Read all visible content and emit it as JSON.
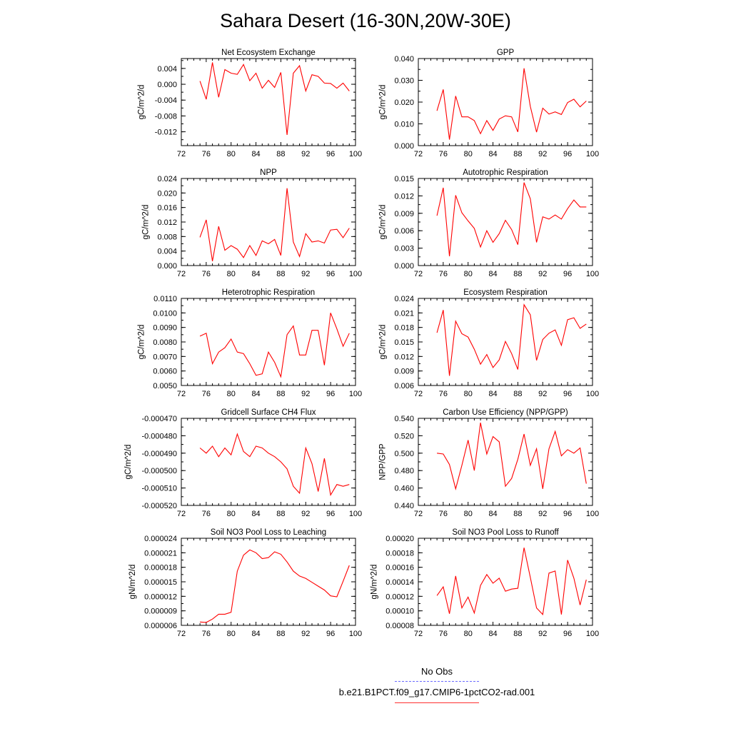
{
  "figure": {
    "title": "Sahara Desert (16-30N,20W-30E)",
    "line_color": "#ff0000",
    "obs_line_color": "#6a6aff"
  },
  "legend": {
    "obs_label": "No Obs",
    "model_label": "b.e21.B1PCT.f09_g17.CMIP6-1pctCO2-rad.001"
  },
  "chart_data": [
    {
      "type": "line",
      "title": "Net Ecosystem Exchange",
      "ylabel": "gC/m^2/d",
      "xlabel": "",
      "xlim": [
        72,
        100
      ],
      "x_ticks": [
        "72",
        "76",
        "80",
        "84",
        "88",
        "92",
        "96",
        "100"
      ],
      "ylim": [
        -0.0155,
        0.0065
      ],
      "y_ticks": [
        "0.004",
        "0.000",
        "-0.004",
        "-0.008",
        "-0.012"
      ],
      "y_tick_values": [
        0.004,
        0.0,
        -0.004,
        -0.008,
        -0.012
      ],
      "x": [
        75,
        76,
        77,
        78,
        79,
        80,
        81,
        82,
        83,
        84,
        85,
        86,
        87,
        88,
        89,
        90,
        91,
        92,
        93,
        94,
        95,
        96,
        97,
        98,
        99
      ],
      "series": [
        {
          "values": [
            0.0008,
            -0.0038,
            0.0055,
            -0.0033,
            0.0037,
            0.0028,
            0.0025,
            0.005,
            0.0009,
            0.0028,
            -0.001,
            0.001,
            -0.0008,
            0.003,
            -0.0128,
            0.0028,
            0.0047,
            -0.0017,
            0.0024,
            0.002,
            0.0003,
            0.0002,
            -0.001,
            0.0003,
            -0.0017
          ]
        }
      ]
    },
    {
      "type": "line",
      "title": "GPP",
      "ylabel": "gC/m^2/d",
      "xlabel": "",
      "xlim": [
        72,
        100
      ],
      "x_ticks": [
        "72",
        "76",
        "80",
        "84",
        "88",
        "92",
        "96",
        "100"
      ],
      "ylim": [
        0.0,
        0.04
      ],
      "y_ticks": [
        "0.040",
        "0.030",
        "0.020",
        "0.010",
        "0.000"
      ],
      "y_tick_values": [
        0.04,
        0.03,
        0.02,
        0.01,
        0.0
      ],
      "x": [
        75,
        76,
        77,
        78,
        79,
        80,
        81,
        82,
        83,
        84,
        85,
        86,
        87,
        88,
        89,
        90,
        91,
        92,
        93,
        94,
        95,
        96,
        97,
        98,
        99
      ],
      "series": [
        {
          "values": [
            0.016,
            0.0258,
            0.0028,
            0.0228,
            0.0132,
            0.0132,
            0.0115,
            0.0055,
            0.0115,
            0.007,
            0.0122,
            0.0137,
            0.0132,
            0.0063,
            0.0355,
            0.018,
            0.0062,
            0.0172,
            0.0145,
            0.0155,
            0.0143,
            0.0198,
            0.0213,
            0.0178,
            0.0205
          ]
        }
      ]
    },
    {
      "type": "line",
      "title": "NPP",
      "ylabel": "gC/m^2/d",
      "xlabel": "",
      "xlim": [
        72,
        100
      ],
      "x_ticks": [
        "72",
        "76",
        "80",
        "84",
        "88",
        "92",
        "96",
        "100"
      ],
      "ylim": [
        0.0,
        0.024
      ],
      "y_ticks": [
        "0.024",
        "0.020",
        "0.016",
        "0.012",
        "0.008",
        "0.004",
        "0.000"
      ],
      "y_tick_values": [
        0.024,
        0.02,
        0.016,
        0.012,
        0.008,
        0.004,
        0.0
      ],
      "x": [
        75,
        76,
        77,
        78,
        79,
        80,
        81,
        82,
        83,
        84,
        85,
        86,
        87,
        88,
        89,
        90,
        91,
        92,
        93,
        94,
        95,
        96,
        97,
        98,
        99
      ],
      "series": [
        {
          "values": [
            0.0078,
            0.0126,
            0.0012,
            0.0108,
            0.0042,
            0.0055,
            0.0045,
            0.0022,
            0.0055,
            0.0028,
            0.0068,
            0.006,
            0.0072,
            0.0028,
            0.0213,
            0.0065,
            0.0025,
            0.0088,
            0.0065,
            0.0068,
            0.0062,
            0.0098,
            0.01,
            0.0077,
            0.0103
          ]
        }
      ]
    },
    {
      "type": "line",
      "title": "Autotrophic Respiration",
      "ylabel": "gC/m^2/d",
      "xlabel": "",
      "xlim": [
        72,
        100
      ],
      "x_ticks": [
        "72",
        "76",
        "80",
        "84",
        "88",
        "92",
        "96",
        "100"
      ],
      "ylim": [
        0.0,
        0.015
      ],
      "y_ticks": [
        "0.015",
        "0.012",
        "0.009",
        "0.006",
        "0.003",
        "0.000"
      ],
      "y_tick_values": [
        0.015,
        0.012,
        0.009,
        0.006,
        0.003,
        0.0
      ],
      "x": [
        75,
        76,
        77,
        78,
        79,
        80,
        81,
        82,
        83,
        84,
        85,
        86,
        87,
        88,
        89,
        90,
        91,
        92,
        93,
        94,
        95,
        96,
        97,
        98,
        99
      ],
      "series": [
        {
          "values": [
            0.0086,
            0.0134,
            0.0016,
            0.0121,
            0.0091,
            0.0077,
            0.0064,
            0.0032,
            0.006,
            0.004,
            0.0055,
            0.0078,
            0.0062,
            0.0036,
            0.0143,
            0.0115,
            0.004,
            0.0084,
            0.008,
            0.0087,
            0.008,
            0.0098,
            0.0113,
            0.0101,
            0.0101
          ]
        }
      ]
    },
    {
      "type": "line",
      "title": "Heterotrophic Respiration",
      "ylabel": "gC/m^2/d",
      "xlabel": "",
      "xlim": [
        72,
        100
      ],
      "x_ticks": [
        "72",
        "76",
        "80",
        "84",
        "88",
        "92",
        "96",
        "100"
      ],
      "ylim": [
        0.005,
        0.011
      ],
      "y_ticks": [
        "0.0110",
        "0.0100",
        "0.0090",
        "0.0080",
        "0.0070",
        "0.0060",
        "0.0050"
      ],
      "y_tick_values": [
        0.011,
        0.01,
        0.009,
        0.008,
        0.007,
        0.006,
        0.005
      ],
      "x": [
        75,
        76,
        77,
        78,
        79,
        80,
        81,
        82,
        83,
        84,
        85,
        86,
        87,
        88,
        89,
        90,
        91,
        92,
        93,
        94,
        95,
        96,
        97,
        98,
        99
      ],
      "series": [
        {
          "values": [
            0.0084,
            0.0086,
            0.0065,
            0.0073,
            0.0076,
            0.0082,
            0.0073,
            0.0072,
            0.0065,
            0.0057,
            0.0058,
            0.0073,
            0.0066,
            0.0056,
            0.0085,
            0.0091,
            0.0071,
            0.0071,
            0.0088,
            0.0088,
            0.0064,
            0.01,
            0.0089,
            0.0077,
            0.0086
          ]
        }
      ]
    },
    {
      "type": "line",
      "title": "Ecosystem Respiration",
      "ylabel": "gC/m^2/d",
      "xlabel": "",
      "xlim": [
        72,
        100
      ],
      "x_ticks": [
        "72",
        "76",
        "80",
        "84",
        "88",
        "92",
        "96",
        "100"
      ],
      "ylim": [
        0.006,
        0.024
      ],
      "y_ticks": [
        "0.024",
        "0.021",
        "0.018",
        "0.015",
        "0.012",
        "0.009",
        "0.006"
      ],
      "y_tick_values": [
        0.024,
        0.021,
        0.018,
        0.015,
        0.012,
        0.009,
        0.006
      ],
      "x": [
        75,
        76,
        77,
        78,
        79,
        80,
        81,
        82,
        83,
        84,
        85,
        86,
        87,
        88,
        89,
        90,
        91,
        92,
        93,
        94,
        95,
        96,
        97,
        98,
        99
      ],
      "series": [
        {
          "values": [
            0.0169,
            0.0216,
            0.008,
            0.0193,
            0.0167,
            0.016,
            0.0135,
            0.0104,
            0.0124,
            0.0097,
            0.0113,
            0.0151,
            0.0126,
            0.0093,
            0.0227,
            0.0206,
            0.0112,
            0.0155,
            0.0168,
            0.0175,
            0.0143,
            0.0196,
            0.02,
            0.0178,
            0.0187
          ]
        }
      ]
    },
    {
      "type": "line",
      "title": "Gridcell Surface CH4 Flux",
      "ylabel": "gC/m^2/d",
      "xlabel": "",
      "xlim": [
        72,
        100
      ],
      "x_ticks": [
        "72",
        "76",
        "80",
        "84",
        "88",
        "92",
        "96",
        "100"
      ],
      "ylim": [
        -0.00052,
        -0.00047
      ],
      "y_ticks": [
        "-0.000470",
        "-0.000480",
        "-0.000490",
        "-0.000500",
        "-0.000510",
        "-0.000520"
      ],
      "y_tick_values": [
        -0.00047,
        -0.00048,
        -0.00049,
        -0.0005,
        -0.00051,
        -0.00052
      ],
      "x": [
        75,
        76,
        77,
        78,
        79,
        80,
        81,
        82,
        83,
        84,
        85,
        86,
        87,
        88,
        89,
        90,
        91,
        92,
        93,
        94,
        95,
        96,
        97,
        98,
        99
      ],
      "series": [
        {
          "values": [
            -0.000487,
            -0.00049,
            -0.000486,
            -0.000492,
            -0.000487,
            -0.000491,
            -0.000479,
            -0.000489,
            -0.000492,
            -0.000486,
            -0.000487,
            -0.00049,
            -0.000492,
            -0.000495,
            -0.000499,
            -0.000509,
            -0.000513,
            -0.000487,
            -0.000496,
            -0.000512,
            -0.000493,
            -0.000514,
            -0.000508,
            -0.000509,
            -0.000508
          ]
        }
      ]
    },
    {
      "type": "line",
      "title": "Carbon Use Efficiency (NPP/GPP)",
      "ylabel": "NPP/GPP",
      "xlabel": "",
      "xlim": [
        72,
        100
      ],
      "x_ticks": [
        "72",
        "76",
        "80",
        "84",
        "88",
        "92",
        "96",
        "100"
      ],
      "ylim": [
        0.44,
        0.54
      ],
      "y_ticks": [
        "0.540",
        "0.520",
        "0.500",
        "0.480",
        "0.460",
        "0.440"
      ],
      "y_tick_values": [
        0.54,
        0.52,
        0.5,
        0.48,
        0.46,
        0.44
      ],
      "x": [
        75,
        76,
        77,
        78,
        79,
        80,
        81,
        82,
        83,
        84,
        85,
        86,
        87,
        88,
        89,
        90,
        91,
        92,
        93,
        94,
        95,
        96,
        97,
        98,
        99
      ],
      "series": [
        {
          "values": [
            0.5,
            0.499,
            0.487,
            0.459,
            0.486,
            0.515,
            0.48,
            0.535,
            0.499,
            0.519,
            0.513,
            0.462,
            0.471,
            0.493,
            0.522,
            0.486,
            0.505,
            0.459,
            0.505,
            0.525,
            0.497,
            0.504,
            0.5,
            0.506,
            0.465
          ]
        }
      ]
    },
    {
      "type": "line",
      "title": "Soil NO3 Pool Loss to Leaching",
      "ylabel": "gN/m^2/d",
      "xlabel": "",
      "xlim": [
        72,
        100
      ],
      "x_ticks": [
        "72",
        "76",
        "80",
        "84",
        "88",
        "92",
        "96",
        "100"
      ],
      "ylim": [
        6e-06,
        2.4e-05
      ],
      "y_ticks": [
        "0.000024",
        "0.000021",
        "0.000018",
        "0.000015",
        "0.000012",
        "0.000009",
        "0.000006"
      ],
      "y_tick_values": [
        2.4e-05,
        2.1e-05,
        1.8e-05,
        1.5e-05,
        1.2e-05,
        9e-06,
        6e-06
      ],
      "x": [
        75,
        76,
        77,
        78,
        79,
        80,
        81,
        82,
        83,
        84,
        85,
        86,
        87,
        88,
        89,
        90,
        91,
        92,
        93,
        94,
        95,
        96,
        97,
        98,
        99
      ],
      "series": [
        {
          "values": [
            6.7e-06,
            6.6e-06,
            7.3e-06,
            8.3e-06,
            8.3e-06,
            8.7e-06,
            1.72e-05,
            2.05e-05,
            2.16e-05,
            2.1e-05,
            1.98e-05,
            2e-05,
            2.12e-05,
            2.07e-05,
            1.91e-05,
            1.72e-05,
            1.62e-05,
            1.57e-05,
            1.49e-05,
            1.41e-05,
            1.33e-05,
            1.21e-05,
            1.19e-05,
            1.51e-05,
            1.84e-05
          ]
        }
      ]
    },
    {
      "type": "line",
      "title": "Soil NO3 Pool Loss to Runoff",
      "ylabel": "gN/m^2/d",
      "xlabel": "",
      "xlim": [
        72,
        100
      ],
      "x_ticks": [
        "72",
        "76",
        "80",
        "84",
        "88",
        "92",
        "96",
        "100"
      ],
      "ylim": [
        8e-05,
        0.0002
      ],
      "y_ticks": [
        "0.00020",
        "0.00018",
        "0.00016",
        "0.00014",
        "0.00012",
        "0.00010",
        "0.00008"
      ],
      "y_tick_values": [
        0.0002,
        0.00018,
        0.00016,
        0.00014,
        0.00012,
        0.0001,
        8e-05
      ],
      "x": [
        75,
        76,
        77,
        78,
        79,
        80,
        81,
        82,
        83,
        84,
        85,
        86,
        87,
        88,
        89,
        90,
        91,
        92,
        93,
        94,
        95,
        96,
        97,
        98,
        99
      ],
      "series": [
        {
          "values": [
            0.000121,
            0.000133,
            9.6e-05,
            0.000148,
            0.000104,
            0.000119,
            9.7e-05,
            0.000135,
            0.00015,
            0.000138,
            0.000145,
            0.000127,
            0.00013,
            0.000131,
            0.000187,
            0.000146,
            0.000104,
            9.5e-05,
            0.000152,
            0.000155,
            9.5e-05,
            0.00017,
            0.000145,
            0.000108,
            0.000143
          ]
        }
      ]
    }
  ]
}
